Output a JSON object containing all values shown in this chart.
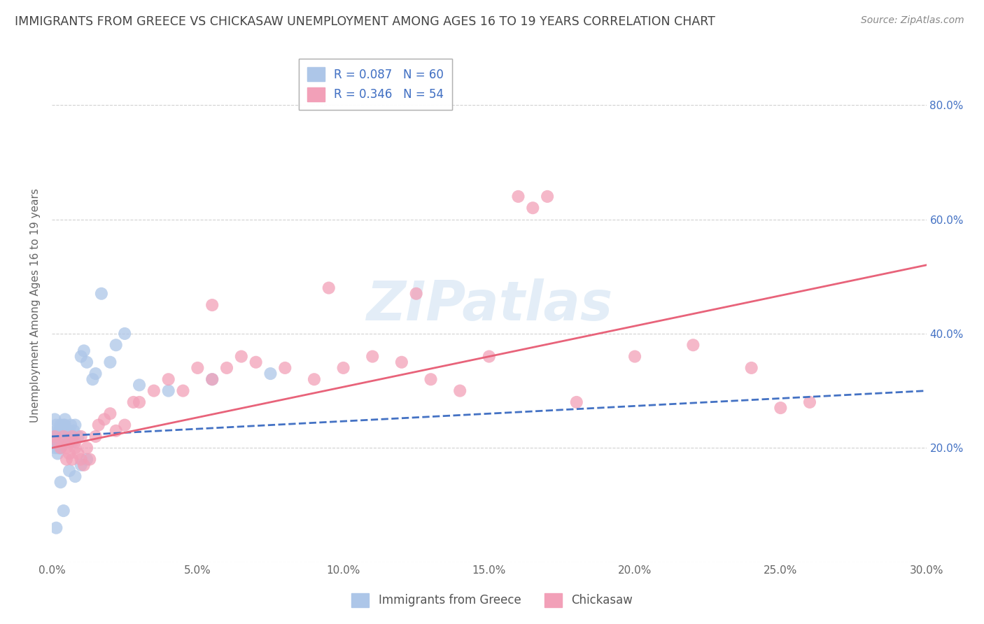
{
  "title": "IMMIGRANTS FROM GREECE VS CHICKASAW UNEMPLOYMENT AMONG AGES 16 TO 19 YEARS CORRELATION CHART",
  "source": "Source: ZipAtlas.com",
  "ylabel": "Unemployment Among Ages 16 to 19 years",
  "xlabel_ticks": [
    "0.0%",
    "5.0%",
    "10.0%",
    "15.0%",
    "20.0%",
    "25.0%",
    "30.0%"
  ],
  "xlabel_vals": [
    0.0,
    5.0,
    10.0,
    15.0,
    20.0,
    25.0,
    30.0
  ],
  "ylabel_ticks_right": [
    "80.0%",
    "60.0%",
    "40.0%",
    "20.0%"
  ],
  "ylabel_vals_right": [
    80.0,
    60.0,
    40.0,
    20.0
  ],
  "xlim": [
    0,
    30
  ],
  "ylim": [
    0,
    90
  ],
  "legend1_label": "R = 0.087   N = 60",
  "legend2_label": "R = 0.346   N = 54",
  "legend_bottom": [
    "Immigrants from Greece",
    "Chickasaw"
  ],
  "blue_color": "#adc6e8",
  "pink_color": "#f2a0b8",
  "blue_line_color": "#4472c4",
  "pink_line_color": "#e8637a",
  "title_color": "#444444",
  "label_color": "#4472c4",
  "watermark": "ZIPatlas",
  "blue_trendline": [
    0,
    30,
    22,
    30
  ],
  "pink_trendline": [
    0,
    30,
    20,
    52
  ],
  "blue_scatter_x": [
    0.05,
    0.1,
    0.1,
    0.1,
    0.15,
    0.15,
    0.15,
    0.2,
    0.2,
    0.2,
    0.2,
    0.25,
    0.25,
    0.25,
    0.25,
    0.3,
    0.3,
    0.3,
    0.3,
    0.35,
    0.35,
    0.35,
    0.4,
    0.4,
    0.4,
    0.45,
    0.45,
    0.5,
    0.5,
    0.5,
    0.55,
    0.55,
    0.6,
    0.6,
    0.65,
    0.7,
    0.7,
    0.75,
    0.8,
    0.9,
    1.0,
    1.1,
    1.2,
    1.4,
    1.5,
    1.7,
    2.0,
    2.2,
    2.5,
    3.0,
    4.0,
    5.5,
    7.5,
    0.3,
    0.6,
    0.8,
    1.0,
    1.2,
    0.4,
    0.15
  ],
  "blue_scatter_y": [
    22,
    25,
    22,
    20,
    24,
    21,
    23,
    22,
    20,
    21,
    19,
    23,
    22,
    21,
    20,
    24,
    22,
    21,
    20,
    23,
    22,
    21,
    24,
    23,
    22,
    25,
    24,
    23,
    22,
    21,
    22,
    21,
    23,
    22,
    24,
    22,
    21,
    23,
    24,
    22,
    36,
    37,
    35,
    32,
    33,
    47,
    35,
    38,
    40,
    31,
    30,
    32,
    33,
    14,
    16,
    15,
    17,
    18,
    9,
    6
  ],
  "pink_scatter_x": [
    0.1,
    0.2,
    0.3,
    0.4,
    0.5,
    0.5,
    0.6,
    0.6,
    0.7,
    0.7,
    0.8,
    0.8,
    0.9,
    1.0,
    1.0,
    1.1,
    1.2,
    1.3,
    1.5,
    1.6,
    1.8,
    2.0,
    2.2,
    2.5,
    2.8,
    3.0,
    3.5,
    4.0,
    4.5,
    5.0,
    5.5,
    6.0,
    6.5,
    7.0,
    8.0,
    9.0,
    10.0,
    11.0,
    12.0,
    13.0,
    14.0,
    15.0,
    16.0,
    16.5,
    17.0,
    18.0,
    20.0,
    22.0,
    24.0,
    26.0,
    5.5,
    9.5,
    12.5,
    25.0
  ],
  "pink_scatter_y": [
    22,
    21,
    20,
    22,
    18,
    20,
    19,
    21,
    22,
    18,
    20,
    21,
    19,
    18,
    22,
    17,
    20,
    18,
    22,
    24,
    25,
    26,
    23,
    24,
    28,
    28,
    30,
    32,
    30,
    34,
    32,
    34,
    36,
    35,
    34,
    32,
    34,
    36,
    35,
    32,
    30,
    36,
    64,
    62,
    64,
    28,
    36,
    38,
    34,
    28,
    45,
    48,
    47,
    27
  ]
}
